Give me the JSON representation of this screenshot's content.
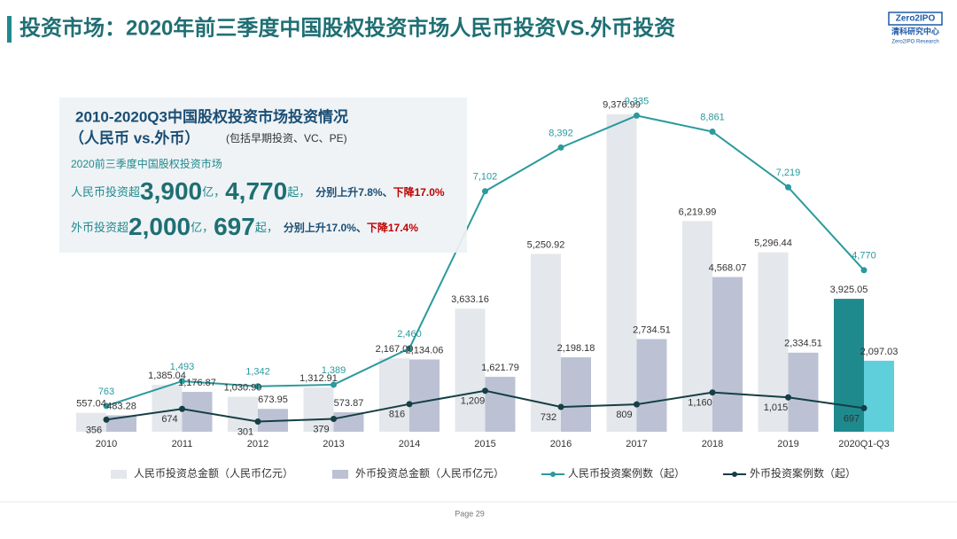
{
  "header": {
    "title": "投资市场：2020年前三季度中国股权投资市场人民币投资VS.外币投资",
    "logo": "Zero2IPO",
    "logo_cn": "清科研究中心",
    "logo_en": "Zero2IPO Research"
  },
  "summary": {
    "heading": "2010-2020Q3中国股权投资市场投资情况",
    "subheading": "（人民币 vs.外币）",
    "note": "(包括早期投资、VC、PE)",
    "intro": "2020前三季度中国股权投资市场",
    "rmb": {
      "prefix": "人民币投资超",
      "amount": "3,900",
      "amount_unit": "亿，",
      "cases": "4,770",
      "cases_unit": "起，",
      "change": "分别上升7.8%、",
      "change2": "下降17.0%"
    },
    "fx": {
      "prefix": "外币投资超",
      "amount": "2,000",
      "amount_unit": "亿，",
      "cases": "697",
      "cases_unit": "起，",
      "change": "分别上升17.0%、",
      "change2": "下降17.4%"
    }
  },
  "footer": {
    "page": "Page  29"
  },
  "chart_data": {
    "type": "combo",
    "categories": [
      "2010",
      "2011",
      "2012",
      "2013",
      "2014",
      "2015",
      "2016",
      "2017",
      "2018",
      "2019",
      "2020Q1-Q3"
    ],
    "ylim": [
      0,
      10000
    ],
    "series": [
      {
        "name": "人民币投资总金额（人民币亿元）",
        "type": "bar",
        "color": "#e4e7eb",
        "last_color": "#1e8a8e",
        "values": [
          557.04,
          1385.04,
          1030.9,
          1312.91,
          2167.0,
          3633.16,
          5250.92,
          9376.99,
          6219.99,
          5296.44,
          3925.05
        ],
        "value_labels": [
          "557.04",
          "1,385.04",
          "1,030.90",
          "1,312.91",
          "2,167.00",
          "3,633.16",
          "5,250.92",
          "9,376.99",
          "6,219.99",
          "5,296.44",
          "3,925.05"
        ]
      },
      {
        "name": "外币投资总金额（人民币亿元）",
        "type": "bar",
        "color": "#bcc2d4",
        "last_color": "#5fcfdc",
        "values": [
          483.28,
          1176.87,
          673.95,
          573.87,
          2134.06,
          1621.79,
          2198.18,
          2734.51,
          4568.07,
          2334.51,
          2097.03
        ],
        "value_labels": [
          "483.28",
          "1,176.87",
          "673.95",
          "573.87",
          "2,134.06",
          "1,621.79",
          "2,198.18",
          "2,734.51",
          "4,568.07",
          "2,334.51",
          "2,097.03"
        ]
      },
      {
        "name": "人民币投资案例数（起）",
        "type": "line",
        "color": "#2a9a9c",
        "values": [
          763,
          1493,
          1342,
          1389,
          2460,
          7102,
          8392,
          9335,
          8861,
          7219,
          4770
        ],
        "value_labels": [
          "763",
          "1,493",
          "1,342",
          "1,389",
          "2,460",
          "7,102",
          "8,392",
          "9,335",
          "8,861",
          "7,219",
          "4,770"
        ]
      },
      {
        "name": "外币投资案例数（起）",
        "type": "line",
        "color": "#153f45",
        "values": [
          356,
          674,
          301,
          379,
          816,
          1209,
          732,
          809,
          1160,
          1015,
          697
        ],
        "value_labels": [
          "356",
          "674",
          "301",
          "379",
          "816",
          "1,209",
          "732",
          "809",
          "1,160",
          "1,015",
          "697"
        ]
      }
    ]
  }
}
